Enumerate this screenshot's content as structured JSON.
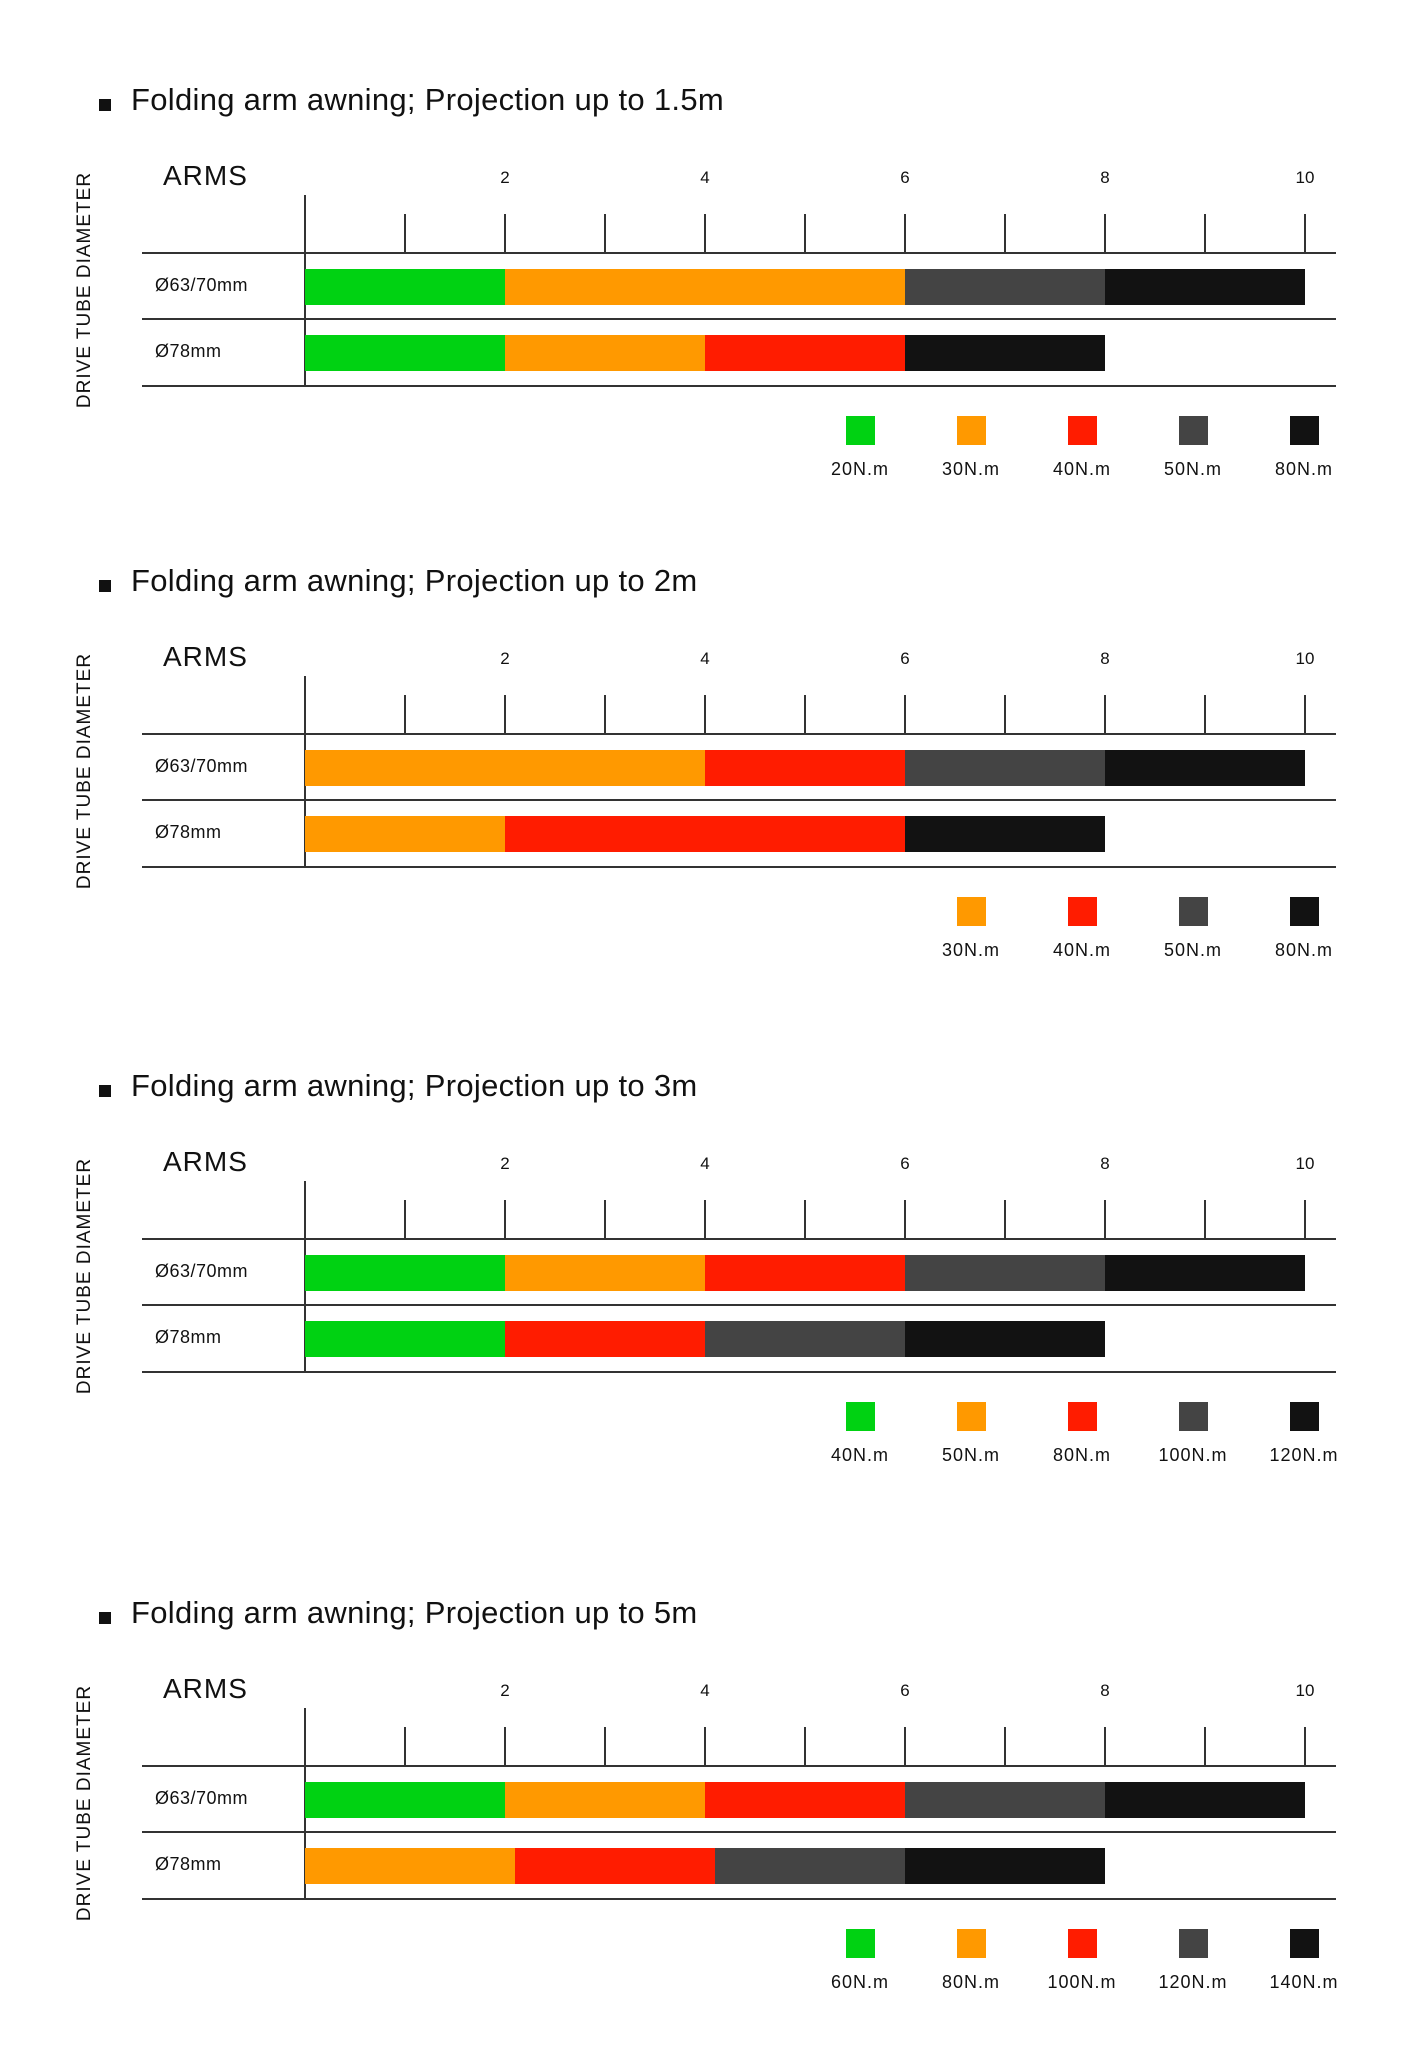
{
  "colors": {
    "green": "#00d212",
    "orange": "#ff9900",
    "red": "#ff1c00",
    "dark_gray": "#444444",
    "black": "#121212"
  },
  "chart_data": [
    {
      "type": "bar",
      "orientation": "horizontal-stacked-range",
      "title": "Folding arm awning; Projection up to 1.5m",
      "xlabel": "ARMS",
      "ylabel": "DRIVE TUBE DIAMETER",
      "xlim": [
        0,
        10
      ],
      "x_ticks": [
        2,
        4,
        6,
        8,
        10
      ],
      "legend_position": "bottom-right",
      "legend": [
        {
          "label": "20N.m",
          "color": "#00d212"
        },
        {
          "label": "30N.m",
          "color": "#ff9900"
        },
        {
          "label": "40N.m",
          "color": "#ff1c00"
        },
        {
          "label": "50N.m",
          "color": "#444444"
        },
        {
          "label": "80N.m",
          "color": "#121212"
        }
      ],
      "rows": [
        {
          "label": "Ø63/70mm",
          "segments": [
            {
              "from": 0,
              "to": 2,
              "series": "20N.m",
              "color": "#00d212"
            },
            {
              "from": 2,
              "to": 6,
              "series": "30N.m",
              "color": "#ff9900"
            },
            {
              "from": 6,
              "to": 8,
              "series": "50N.m",
              "color": "#444444"
            },
            {
              "from": 8,
              "to": 10,
              "series": "80N.m",
              "color": "#121212"
            }
          ]
        },
        {
          "label": "Ø78mm",
          "segments": [
            {
              "from": 0,
              "to": 2,
              "series": "20N.m",
              "color": "#00d212"
            },
            {
              "from": 2,
              "to": 4,
              "series": "30N.m",
              "color": "#ff9900"
            },
            {
              "from": 4,
              "to": 6,
              "series": "40N.m",
              "color": "#ff1c00"
            },
            {
              "from": 6,
              "to": 8,
              "series": "80N.m",
              "color": "#121212"
            }
          ]
        }
      ]
    },
    {
      "type": "bar",
      "orientation": "horizontal-stacked-range",
      "title": "Folding arm awning; Projection up to 2m",
      "xlabel": "ARMS",
      "ylabel": "DRIVE TUBE DIAMETER",
      "xlim": [
        0,
        10
      ],
      "x_ticks": [
        2,
        4,
        6,
        8,
        10
      ],
      "legend_position": "bottom-right",
      "legend": [
        {
          "label": "30N.m",
          "color": "#ff9900"
        },
        {
          "label": "40N.m",
          "color": "#ff1c00"
        },
        {
          "label": "50N.m",
          "color": "#444444"
        },
        {
          "label": "80N.m",
          "color": "#121212"
        }
      ],
      "rows": [
        {
          "label": "Ø63/70mm",
          "segments": [
            {
              "from": 0,
              "to": 4,
              "series": "30N.m",
              "color": "#ff9900"
            },
            {
              "from": 4,
              "to": 6,
              "series": "40N.m",
              "color": "#ff1c00"
            },
            {
              "from": 6,
              "to": 8,
              "series": "50N.m",
              "color": "#444444"
            },
            {
              "from": 8,
              "to": 10,
              "series": "80N.m",
              "color": "#121212"
            }
          ]
        },
        {
          "label": "Ø78mm",
          "segments": [
            {
              "from": 0,
              "to": 2,
              "series": "30N.m",
              "color": "#ff9900"
            },
            {
              "from": 2,
              "to": 6,
              "series": "40N.m",
              "color": "#ff1c00"
            },
            {
              "from": 6,
              "to": 8,
              "series": "80N.m",
              "color": "#121212"
            }
          ]
        }
      ]
    },
    {
      "type": "bar",
      "orientation": "horizontal-stacked-range",
      "title": "Folding arm awning; Projection up to 3m",
      "xlabel": "ARMS",
      "ylabel": "DRIVE TUBE DIAMETER",
      "xlim": [
        0,
        10
      ],
      "x_ticks": [
        2,
        4,
        6,
        8,
        10
      ],
      "legend_position": "bottom-right",
      "legend": [
        {
          "label": "40N.m",
          "color": "#00d212"
        },
        {
          "label": "50N.m",
          "color": "#ff9900"
        },
        {
          "label": "80N.m",
          "color": "#ff1c00"
        },
        {
          "label": "100N.m",
          "color": "#444444"
        },
        {
          "label": "120N.m",
          "color": "#121212"
        }
      ],
      "rows": [
        {
          "label": "Ø63/70mm",
          "segments": [
            {
              "from": 0,
              "to": 2,
              "series": "40N.m",
              "color": "#00d212"
            },
            {
              "from": 2,
              "to": 4,
              "series": "50N.m",
              "color": "#ff9900"
            },
            {
              "from": 4,
              "to": 6,
              "series": "80N.m",
              "color": "#ff1c00"
            },
            {
              "from": 6,
              "to": 8,
              "series": "100N.m",
              "color": "#444444"
            },
            {
              "from": 8,
              "to": 10,
              "series": "120N.m",
              "color": "#121212"
            }
          ]
        },
        {
          "label": "Ø78mm",
          "segments": [
            {
              "from": 0,
              "to": 2,
              "series": "40N.m",
              "color": "#00d212"
            },
            {
              "from": 2,
              "to": 4,
              "series": "80N.m",
              "color": "#ff1c00"
            },
            {
              "from": 4,
              "to": 6,
              "series": "100N.m",
              "color": "#444444"
            },
            {
              "from": 6,
              "to": 8,
              "series": "120N.m",
              "color": "#121212"
            }
          ]
        }
      ]
    },
    {
      "type": "bar",
      "orientation": "horizontal-stacked-range",
      "title": "Folding arm awning; Projection up to 5m",
      "xlabel": "ARMS",
      "ylabel": "DRIVE TUBE DIAMETER",
      "xlim": [
        0,
        10
      ],
      "x_ticks": [
        2,
        4,
        6,
        8,
        10
      ],
      "legend_position": "bottom-right",
      "legend": [
        {
          "label": "60N.m",
          "color": "#00d212"
        },
        {
          "label": "80N.m",
          "color": "#ff9900"
        },
        {
          "label": "100N.m",
          "color": "#ff1c00"
        },
        {
          "label": "120N.m",
          "color": "#444444"
        },
        {
          "label": "140N.m",
          "color": "#121212"
        }
      ],
      "rows": [
        {
          "label": "Ø63/70mm",
          "segments": [
            {
              "from": 0,
              "to": 2,
              "series": "60N.m",
              "color": "#00d212"
            },
            {
              "from": 2,
              "to": 4,
              "series": "80N.m",
              "color": "#ff9900"
            },
            {
              "from": 4,
              "to": 6,
              "series": "100N.m",
              "color": "#ff1c00"
            },
            {
              "from": 6,
              "to": 8,
              "series": "120N.m",
              "color": "#444444"
            },
            {
              "from": 8,
              "to": 10,
              "series": "140N.m",
              "color": "#121212"
            }
          ]
        },
        {
          "label": "Ø78mm",
          "segments": [
            {
              "from": 0,
              "to": 2.1,
              "series": "80N.m",
              "color": "#ff9900"
            },
            {
              "from": 2.1,
              "to": 4.1,
              "series": "100N.m",
              "color": "#ff1c00"
            },
            {
              "from": 4.1,
              "to": 6,
              "series": "120N.m",
              "color": "#444444"
            },
            {
              "from": 6,
              "to": 8,
              "series": "140N.m",
              "color": "#121212"
            }
          ]
        }
      ]
    }
  ]
}
